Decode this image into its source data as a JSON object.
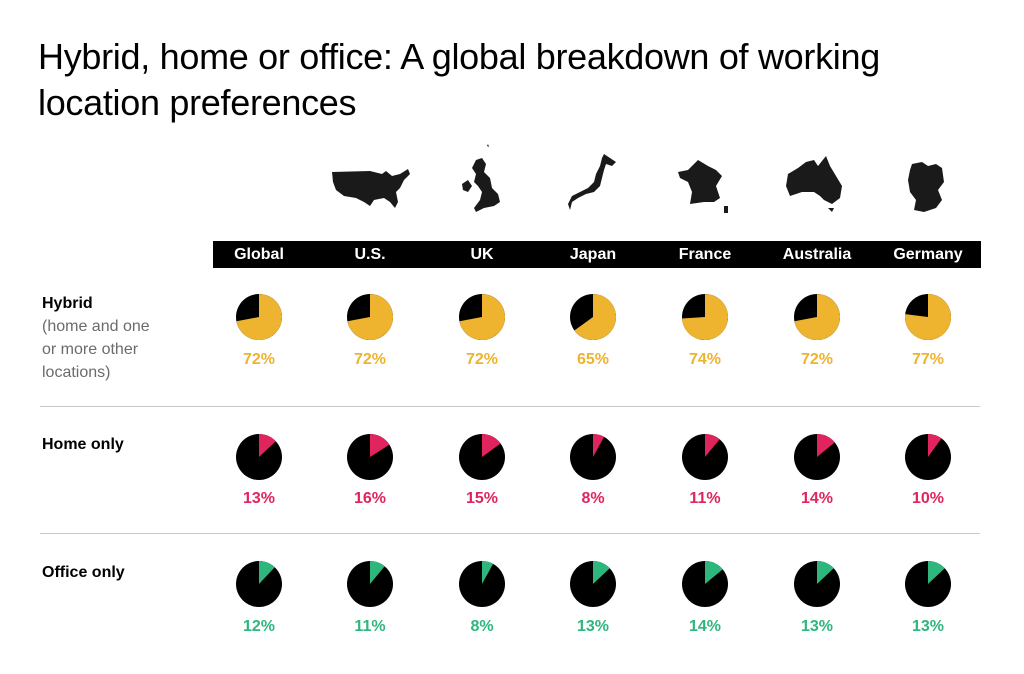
{
  "title": "Hybrid, home or office: A global breakdown of working location preferences",
  "colors": {
    "hybrid": "#EEB32F",
    "home": "#E0245E",
    "office": "#2EB67D",
    "rest": "#000000",
    "header_bg": "#000000",
    "header_text": "#FFFFFF",
    "sub_label": "#6B6B6B",
    "divider": "#C8C8C8"
  },
  "columns": [
    {
      "label": "Global",
      "map_icon": null
    },
    {
      "label": "U.S.",
      "map_icon": "usa-map-icon"
    },
    {
      "label": "UK",
      "map_icon": "uk-map-icon"
    },
    {
      "label": "Japan",
      "map_icon": "japan-map-icon"
    },
    {
      "label": "France",
      "map_icon": "france-map-icon"
    },
    {
      "label": "Australia",
      "map_icon": "australia-map-icon"
    },
    {
      "label": "Germany",
      "map_icon": "germany-map-icon"
    }
  ],
  "rows": [
    {
      "label": "Hybrid",
      "sublabel_lines": [
        "(home and one",
        "or more other",
        "locations)"
      ],
      "values_display": [
        "72%",
        "72%",
        "72%",
        "65%",
        "74%",
        "72%",
        "77%"
      ]
    },
    {
      "label": "Home only",
      "sublabel_lines": [],
      "values_display": [
        "13%",
        "16%",
        "15%",
        "8%",
        "11%",
        "14%",
        "10%"
      ]
    },
    {
      "label": "Office only",
      "sublabel_lines": [],
      "values_display": [
        "12%",
        "11%",
        "8%",
        "13%",
        "14%",
        "13%",
        "13%"
      ]
    }
  ],
  "chart_data": {
    "type": "pie",
    "title": "Hybrid, home or office: A global breakdown of working location preferences",
    "categories": [
      "Global",
      "U.S.",
      "UK",
      "Japan",
      "France",
      "Australia",
      "Germany"
    ],
    "series": [
      {
        "name": "Hybrid (home and one or more other locations)",
        "color": "#EEB32F",
        "values": [
          72,
          72,
          72,
          65,
          74,
          72,
          77
        ]
      },
      {
        "name": "Home only",
        "color": "#E0245E",
        "values": [
          13,
          16,
          15,
          8,
          11,
          14,
          10
        ]
      },
      {
        "name": "Office only",
        "color": "#2EB67D",
        "values": [
          12,
          11,
          8,
          13,
          14,
          13,
          13
        ]
      }
    ],
    "unit": "%",
    "layout": "small-multiple pie grid, one pie per country per category"
  }
}
